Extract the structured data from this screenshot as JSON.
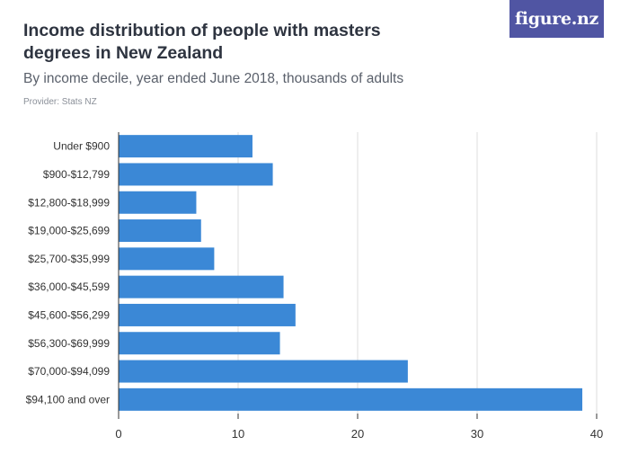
{
  "header": {
    "title": "Income distribution of people with masters degrees in New Zealand",
    "subtitle": "By income decile, year ended June 2018, thousands of adults",
    "provider": "Provider: Stats NZ",
    "logo_text": "figure.nz"
  },
  "colors": {
    "bar": "#3b88d6",
    "grid": "#dcdcdc",
    "axis": "#333333",
    "logo_bg": "#5055a3"
  },
  "chart_data": {
    "type": "bar",
    "orientation": "horizontal",
    "categories": [
      "Under $900",
      "$900-$12,799",
      "$12,800-$18,999",
      "$19,000-$25,699",
      "$25,700-$35,999",
      "$36,000-$45,599",
      "$45,600-$56,299",
      "$56,300-$69,999",
      "$70,000-$94,099",
      "$94,100 and over"
    ],
    "values": [
      11.2,
      12.9,
      6.5,
      6.9,
      8.0,
      13.8,
      14.8,
      13.5,
      24.2,
      38.8
    ],
    "xlim": [
      0,
      40
    ],
    "xticks": [
      0,
      10,
      20,
      30,
      40
    ],
    "xlabel": "",
    "ylabel": "",
    "grid": true
  }
}
